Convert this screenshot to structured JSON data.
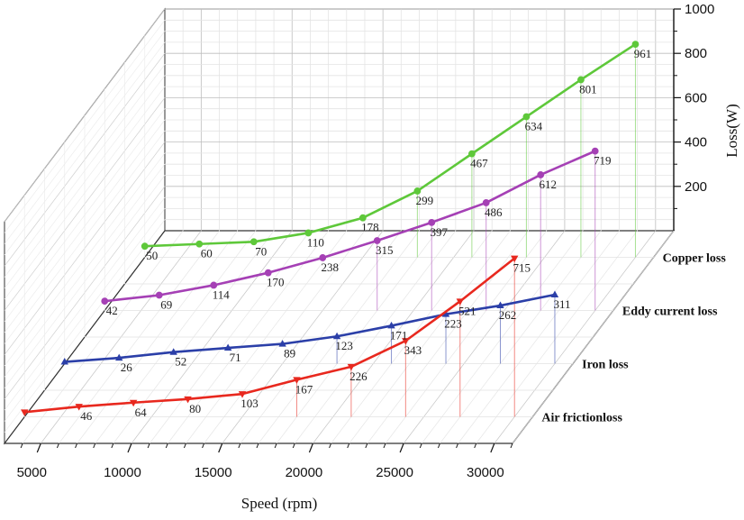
{
  "chart_data": {
    "type": "line",
    "projection": "3d",
    "xlabel": "Speed (rpm)",
    "zlabel": "Loss(W)",
    "x_ticks": [
      5000,
      10000,
      15000,
      20000,
      25000,
      30000
    ],
    "z_ticks": [
      200,
      400,
      600,
      800,
      1000
    ],
    "z_tick_labels_visible": [
      "200",
      "400",
      "600",
      "800",
      "1000"
    ],
    "xlim": [
      3000,
      31000
    ],
    "zlim": [
      0,
      1000
    ],
    "series": [
      {
        "name": "Air frictionloss",
        "color": "#e8281e",
        "marker": "triangle-down",
        "x": [
          3000,
          6000,
          9000,
          12000,
          15000,
          18000,
          21000,
          24000,
          27000,
          30000
        ],
        "values": [
          21,
          46,
          64,
          80,
          103,
          167,
          226,
          343,
          521,
          715
        ],
        "labels": [
          "",
          "46",
          "64",
          "80",
          "103",
          "167",
          "226",
          "343",
          "521",
          "715"
        ]
      },
      {
        "name": "Iron loss",
        "color": "#2b3fa8",
        "marker": "triangle-up",
        "x": [
          3000,
          6000,
          9000,
          12000,
          15000,
          18000,
          21000,
          24000,
          27000,
          30000
        ],
        "values": [
          8,
          26,
          52,
          71,
          89,
          123,
          171,
          223,
          262,
          311
        ],
        "labels": [
          "",
          "26",
          "52",
          "71",
          "89",
          "123",
          "171",
          "223",
          "262",
          "311"
        ]
      },
      {
        "name": "Eddy current loss",
        "color": "#a540b5",
        "marker": "circle",
        "x": [
          3000,
          6000,
          9000,
          12000,
          15000,
          18000,
          21000,
          24000,
          27000,
          30000
        ],
        "values": [
          42,
          69,
          114,
          170,
          238,
          315,
          397,
          486,
          612,
          719
        ],
        "labels": [
          "42",
          "69",
          "114",
          "170",
          "238",
          "315",
          "397",
          "486",
          "612",
          "719"
        ]
      },
      {
        "name": "Copper loss",
        "color": "#5ec83a",
        "marker": "circle",
        "x": [
          3000,
          6000,
          9000,
          12000,
          15000,
          18000,
          21000,
          24000,
          27000,
          30000
        ],
        "values": [
          50,
          60,
          70,
          110,
          178,
          299,
          467,
          634,
          801,
          961
        ],
        "labels": [
          "50",
          "60",
          "70",
          "110",
          "178",
          "299",
          "467",
          "634",
          "801",
          "961"
        ]
      }
    ]
  }
}
